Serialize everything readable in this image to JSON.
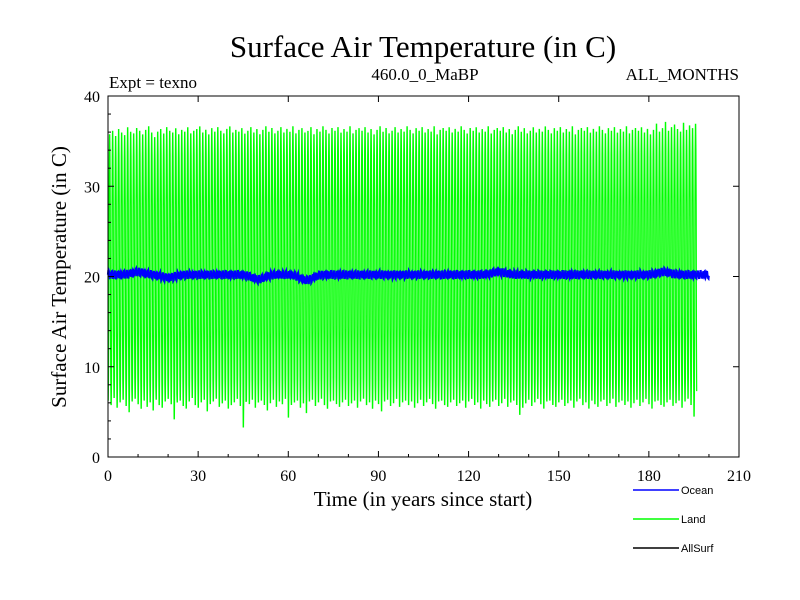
{
  "chart_data": {
    "type": "line",
    "title": "Surface Air Temperature (in C)",
    "subtitle_left": "Expt = texno",
    "subtitle_center": "460.0_0_MaBP",
    "subtitle_right": "ALL_MONTHS",
    "xlabel": "Time (in years since start)",
    "ylabel": "Surface Air Temperature (in C)",
    "xlim": [
      0,
      210
    ],
    "ylim": [
      0,
      40
    ],
    "x_ticks": [
      0,
      30,
      60,
      90,
      120,
      150,
      180,
      210
    ],
    "y_ticks": [
      0,
      10,
      20,
      30,
      40
    ],
    "x_tick_labels": [
      "0",
      "30",
      "60",
      "90",
      "120",
      "150",
      "180",
      "210"
    ],
    "y_tick_labels": [
      "0",
      "10",
      "20",
      "30",
      "40"
    ],
    "series": [
      {
        "name": "Land",
        "color": "#00ff00",
        "description_hidden": false,
        "years": 200,
        "monthly_cycle": {
          "annual_mean": 21.0,
          "annual_max_typical": 36.5,
          "annual_min_typical": 5.5
        },
        "annual_max": [
          36.0,
          36.4,
          35.8,
          36.6,
          36.2,
          35.9,
          36.8,
          36.3,
          36.1,
          36.7,
          36.4,
          36.0,
          36.5,
          36.9,
          36.2,
          35.7,
          36.3,
          36.6,
          36.1,
          36.8,
          36.4,
          36.2,
          36.7,
          36.0,
          36.5,
          36.3,
          36.8,
          36.1,
          36.4,
          36.6,
          36.9,
          36.2,
          36.5,
          36.0,
          36.7,
          36.3,
          36.8,
          36.4,
          36.1,
          36.6,
          36.9,
          36.2,
          36.5,
          36.3,
          36.7,
          36.1,
          36.4,
          36.8,
          36.2,
          36.6,
          36.0,
          36.5,
          36.9,
          36.3,
          36.7,
          36.1,
          36.4,
          36.8,
          36.2,
          36.6,
          36.3,
          36.9,
          36.1,
          36.5,
          36.7,
          36.2,
          36.4,
          36.8,
          36.0,
          36.6,
          36.3,
          36.9,
          36.5,
          36.1,
          36.7,
          36.4,
          36.8,
          36.2,
          36.6,
          36.3,
          36.9,
          36.1,
          36.5,
          36.7,
          36.4,
          36.8,
          36.2,
          36.6,
          36.0,
          36.5,
          36.9,
          36.3,
          36.7,
          36.1,
          36.4,
          36.8,
          36.2,
          36.6,
          36.3,
          36.9,
          36.5,
          36.1,
          36.7,
          36.4,
          36.8,
          36.2,
          36.6,
          36.3,
          36.9,
          36.0,
          36.5,
          36.7,
          36.4,
          36.8,
          36.2,
          36.6,
          36.3,
          36.9,
          36.5,
          36.1,
          36.7,
          36.4,
          36.8,
          36.2,
          36.6,
          36.3,
          36.9,
          36.1,
          36.5,
          36.7,
          36.4,
          36.8,
          36.2,
          36.6,
          36.0,
          36.5,
          36.9,
          36.3,
          36.7,
          36.1,
          36.4,
          36.8,
          36.2,
          36.6,
          36.3,
          36.9,
          36.5,
          36.1,
          36.7,
          36.4,
          36.8,
          36.2,
          36.6,
          36.3,
          36.9,
          36.0,
          36.5,
          36.7,
          36.4,
          36.8,
          36.2,
          36.6,
          36.3,
          36.9,
          36.5,
          36.1,
          36.7,
          36.4,
          36.8,
          36.2,
          36.6,
          36.3,
          36.9,
          36.1,
          36.5,
          36.7,
          36.4,
          36.8,
          36.2,
          36.6,
          36.0,
          36.5,
          37.2,
          36.3,
          36.7,
          37.4,
          36.4,
          36.8,
          37.1,
          36.6,
          36.3,
          37.3,
          36.5,
          37.0,
          36.7,
          37.2,
          36.8,
          37.1,
          36.6,
          37.0,
          37.3
        ],
        "annual_min": [
          6.0,
          5.5,
          6.3,
          5.2,
          5.8,
          6.1,
          5.4,
          4.7,
          5.9,
          6.2,
          5.6,
          5.1,
          6.0,
          5.3,
          5.8,
          4.9,
          6.1,
          5.5,
          5.2,
          5.9,
          6.2,
          5.6,
          3.9,
          5.8,
          6.0,
          5.4,
          5.1,
          5.9,
          6.3,
          5.5,
          5.2,
          5.8,
          6.1,
          4.8,
          5.6,
          5.9,
          6.2,
          5.3,
          5.7,
          6.0,
          5.1,
          5.5,
          5.8,
          6.2,
          5.4,
          3.0,
          5.9,
          5.6,
          6.1,
          5.2,
          5.8,
          6.0,
          5.5,
          4.9,
          5.7,
          6.1,
          5.3,
          5.9,
          5.6,
          6.2,
          4.1,
          5.5,
          5.8,
          6.0,
          5.2,
          5.7,
          4.6,
          5.9,
          6.1,
          5.4,
          5.8,
          6.2,
          5.5,
          5.1,
          5.9,
          6.0,
          5.6,
          5.3,
          5.8,
          6.1,
          5.4,
          5.7,
          6.0,
          5.2,
          5.9,
          6.2,
          5.5,
          5.8,
          5.1,
          6.0,
          5.6,
          4.8,
          5.9,
          6.1,
          5.4,
          5.7,
          6.2,
          5.3,
          5.8,
          6.0,
          5.5,
          5.9,
          5.2,
          5.7,
          6.1,
          5.4,
          5.8,
          6.2,
          5.6,
          5.1,
          5.9,
          6.0,
          5.5,
          5.3,
          5.8,
          6.1,
          5.4,
          5.7,
          6.0,
          5.2,
          5.9,
          6.2,
          5.5,
          5.8,
          5.1,
          6.0,
          5.6,
          5.3,
          5.9,
          6.1,
          5.4,
          5.7,
          6.2,
          5.3,
          5.8,
          6.0,
          5.5,
          4.4,
          5.2,
          5.7,
          6.1,
          5.4,
          5.8,
          6.2,
          5.6,
          5.1,
          5.9,
          6.0,
          5.5,
          5.3,
          5.8,
          6.1,
          5.4,
          5.7,
          6.0,
          5.2,
          5.9,
          6.2,
          5.5,
          5.8,
          5.1,
          6.0,
          5.6,
          5.3,
          5.9,
          6.1,
          5.4,
          5.7,
          6.2,
          5.3,
          5.8,
          6.0,
          5.5,
          5.9,
          5.2,
          5.7,
          6.1,
          5.4,
          5.8,
          6.2,
          5.6,
          5.1,
          5.9,
          6.0,
          5.5,
          5.3,
          5.8,
          6.1,
          5.4,
          5.7,
          6.0,
          5.2,
          5.9,
          6.2,
          5.5,
          4.2
        ]
      },
      {
        "name": "Ocean",
        "color": "#0000ff",
        "years": 200,
        "annual_mean": 20.2,
        "seasonal_amplitude": 0.35,
        "anomalies": [
          {
            "year": 10,
            "delta": 0.3
          },
          {
            "year": 20,
            "delta": -0.3
          },
          {
            "year": 50,
            "delta": -0.5
          },
          {
            "year": 66,
            "delta": -0.6
          },
          {
            "year": 130,
            "delta": 0.3
          },
          {
            "year": 185,
            "delta": 0.3
          }
        ]
      },
      {
        "name": "AllSurf",
        "color": "#000000",
        "hidden_behind_land": true,
        "years": 200,
        "annual_mean": 20.6
      }
    ],
    "legend": {
      "placement": "bottom-right",
      "entries": [
        {
          "label": "Ocean",
          "color": "#0000ff"
        },
        {
          "label": "Land",
          "color": "#00ff00"
        },
        {
          "label": "AllSurf",
          "color": "#000000"
        }
      ]
    }
  }
}
